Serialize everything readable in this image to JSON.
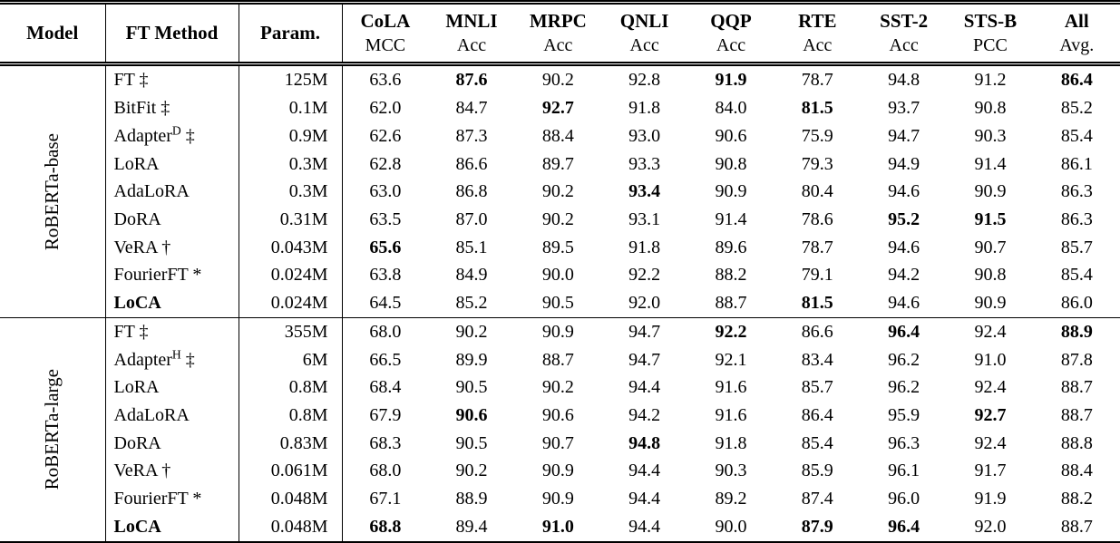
{
  "header": {
    "model": "Model",
    "ft_method": "FT Method",
    "param": "Param.",
    "metrics": [
      {
        "task": "CoLA",
        "metric": "MCC"
      },
      {
        "task": "MNLI",
        "metric": "Acc"
      },
      {
        "task": "MRPC",
        "metric": "Acc"
      },
      {
        "task": "QNLI",
        "metric": "Acc"
      },
      {
        "task": "QQP",
        "metric": "Acc"
      },
      {
        "task": "RTE",
        "metric": "Acc"
      },
      {
        "task": "SST-2",
        "metric": "Acc"
      },
      {
        "task": "STS-B",
        "metric": "PCC"
      },
      {
        "task": "All",
        "metric": "Avg."
      }
    ]
  },
  "colors": {
    "text": "#000000",
    "background": "#ffffff",
    "rule": "#000000"
  },
  "groups": [
    {
      "model": "RoBERTa-base",
      "rows": [
        {
          "method": "FT",
          "sup": "",
          "marker": "‡",
          "bold_method": false,
          "param": "125M",
          "values": [
            "63.6",
            "87.6",
            "90.2",
            "92.8",
            "91.9",
            "78.7",
            "94.8",
            "91.2",
            "86.4"
          ],
          "bold": [
            0,
            1,
            0,
            0,
            1,
            0,
            0,
            0,
            1
          ]
        },
        {
          "method": "BitFit",
          "sup": "",
          "marker": "‡",
          "bold_method": false,
          "param": "0.1M",
          "values": [
            "62.0",
            "84.7",
            "92.7",
            "91.8",
            "84.0",
            "81.5",
            "93.7",
            "90.8",
            "85.2"
          ],
          "bold": [
            0,
            0,
            1,
            0,
            0,
            1,
            0,
            0,
            0
          ]
        },
        {
          "method": "Adapter",
          "sup": "D",
          "marker": "‡",
          "bold_method": false,
          "param": "0.9M",
          "values": [
            "62.6",
            "87.3",
            "88.4",
            "93.0",
            "90.6",
            "75.9",
            "94.7",
            "90.3",
            "85.4"
          ],
          "bold": [
            0,
            0,
            0,
            0,
            0,
            0,
            0,
            0,
            0
          ]
        },
        {
          "method": "LoRA",
          "sup": "",
          "marker": "",
          "bold_method": false,
          "param": "0.3M",
          "values": [
            "62.8",
            "86.6",
            "89.7",
            "93.3",
            "90.8",
            "79.3",
            "94.9",
            "91.4",
            "86.1"
          ],
          "bold": [
            0,
            0,
            0,
            0,
            0,
            0,
            0,
            0,
            0
          ]
        },
        {
          "method": "AdaLoRA",
          "sup": "",
          "marker": "",
          "bold_method": false,
          "param": "0.3M",
          "values": [
            "63.0",
            "86.8",
            "90.2",
            "93.4",
            "90.9",
            "80.4",
            "94.6",
            "90.9",
            "86.3"
          ],
          "bold": [
            0,
            0,
            0,
            1,
            0,
            0,
            0,
            0,
            0
          ]
        },
        {
          "method": "DoRA",
          "sup": "",
          "marker": "",
          "bold_method": false,
          "param": "0.31M",
          "values": [
            "63.5",
            "87.0",
            "90.2",
            "93.1",
            "91.4",
            "78.6",
            "95.2",
            "91.5",
            "86.3"
          ],
          "bold": [
            0,
            0,
            0,
            0,
            0,
            0,
            1,
            1,
            0
          ]
        },
        {
          "method": "VeRA",
          "sup": "",
          "marker": "†",
          "bold_method": false,
          "param": "0.043M",
          "values": [
            "65.6",
            "85.1",
            "89.5",
            "91.8",
            "89.6",
            "78.7",
            "94.6",
            "90.7",
            "85.7"
          ],
          "bold": [
            1,
            0,
            0,
            0,
            0,
            0,
            0,
            0,
            0
          ]
        },
        {
          "method": "FourierFT",
          "sup": "",
          "marker": "*",
          "bold_method": false,
          "param": "0.024M",
          "values": [
            "63.8",
            "84.9",
            "90.0",
            "92.2",
            "88.2",
            "79.1",
            "94.2",
            "90.8",
            "85.4"
          ],
          "bold": [
            0,
            0,
            0,
            0,
            0,
            0,
            0,
            0,
            0
          ]
        },
        {
          "method": "LoCA",
          "sup": "",
          "marker": "",
          "bold_method": true,
          "param": "0.024M",
          "values": [
            "64.5",
            "85.2",
            "90.5",
            "92.0",
            "88.7",
            "81.5",
            "94.6",
            "90.9",
            "86.0"
          ],
          "bold": [
            0,
            0,
            0,
            0,
            0,
            1,
            0,
            0,
            0
          ]
        }
      ]
    },
    {
      "model": "RoBERTa-large",
      "rows": [
        {
          "method": "FT",
          "sup": "",
          "marker": "‡",
          "bold_method": false,
          "param": "355M",
          "values": [
            "68.0",
            "90.2",
            "90.9",
            "94.7",
            "92.2",
            "86.6",
            "96.4",
            "92.4",
            "88.9"
          ],
          "bold": [
            0,
            0,
            0,
            0,
            1,
            0,
            1,
            0,
            1
          ]
        },
        {
          "method": "Adapter",
          "sup": "H",
          "marker": "‡",
          "bold_method": false,
          "param": "6M",
          "values": [
            "66.5",
            "89.9",
            "88.7",
            "94.7",
            "92.1",
            "83.4",
            "96.2",
            "91.0",
            "87.8"
          ],
          "bold": [
            0,
            0,
            0,
            0,
            0,
            0,
            0,
            0,
            0
          ]
        },
        {
          "method": "LoRA",
          "sup": "",
          "marker": "",
          "bold_method": false,
          "param": "0.8M",
          "values": [
            "68.4",
            "90.5",
            "90.2",
            "94.4",
            "91.6",
            "85.7",
            "96.2",
            "92.4",
            "88.7"
          ],
          "bold": [
            0,
            0,
            0,
            0,
            0,
            0,
            0,
            0,
            0
          ]
        },
        {
          "method": "AdaLoRA",
          "sup": "",
          "marker": "",
          "bold_method": false,
          "param": "0.8M",
          "values": [
            "67.9",
            "90.6",
            "90.6",
            "94.2",
            "91.6",
            "86.4",
            "95.9",
            "92.7",
            "88.7"
          ],
          "bold": [
            0,
            1,
            0,
            0,
            0,
            0,
            0,
            1,
            0
          ]
        },
        {
          "method": "DoRA",
          "sup": "",
          "marker": "",
          "bold_method": false,
          "param": "0.83M",
          "values": [
            "68.3",
            "90.5",
            "90.7",
            "94.8",
            "91.8",
            "85.4",
            "96.3",
            "92.4",
            "88.8"
          ],
          "bold": [
            0,
            0,
            0,
            1,
            0,
            0,
            0,
            0,
            0
          ]
        },
        {
          "method": "VeRA",
          "sup": "",
          "marker": "†",
          "bold_method": false,
          "param": "0.061M",
          "values": [
            "68.0",
            "90.2",
            "90.9",
            "94.4",
            "90.3",
            "85.9",
            "96.1",
            "91.7",
            "88.4"
          ],
          "bold": [
            0,
            0,
            0,
            0,
            0,
            0,
            0,
            0,
            0
          ]
        },
        {
          "method": "FourierFT",
          "sup": "",
          "marker": "*",
          "bold_method": false,
          "param": "0.048M",
          "values": [
            "67.1",
            "88.9",
            "90.9",
            "94.4",
            "89.2",
            "87.4",
            "96.0",
            "91.9",
            "88.2"
          ],
          "bold": [
            0,
            0,
            0,
            0,
            0,
            0,
            0,
            0,
            0
          ]
        },
        {
          "method": "LoCA",
          "sup": "",
          "marker": "",
          "bold_method": true,
          "param": "0.048M",
          "values": [
            "68.8",
            "89.4",
            "91.0",
            "94.4",
            "90.0",
            "87.9",
            "96.4",
            "92.0",
            "88.7"
          ],
          "bold": [
            1,
            0,
            1,
            0,
            0,
            1,
            1,
            0,
            0
          ]
        }
      ]
    }
  ]
}
